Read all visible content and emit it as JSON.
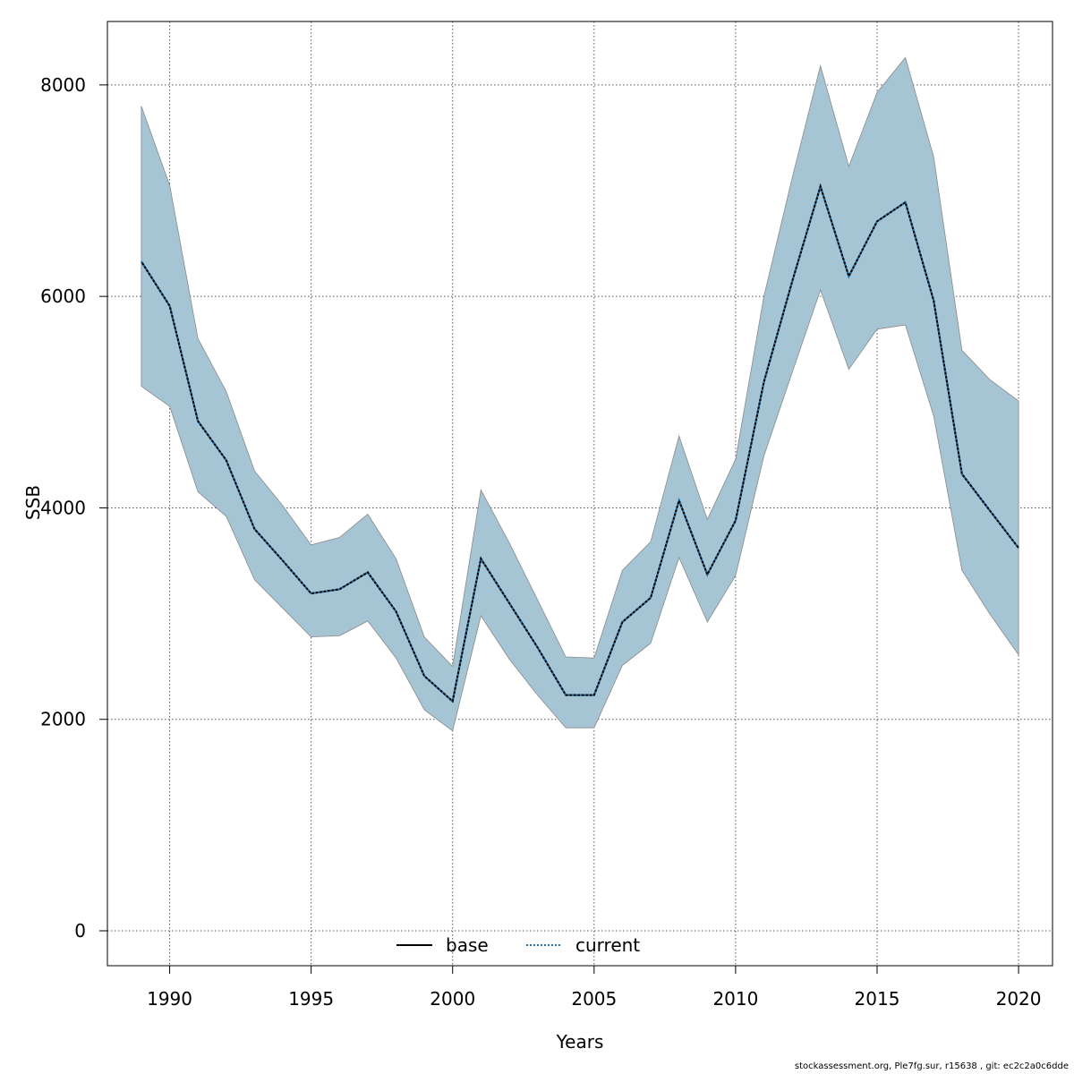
{
  "chart_data": {
    "type": "line",
    "xlabel": "Years",
    "ylabel": "SSB",
    "xlim": [
      1987.8,
      2021.2
    ],
    "ylim": [
      -330,
      8600
    ],
    "xticks": [
      1990,
      1995,
      2000,
      2005,
      2010,
      2015,
      2020
    ],
    "xtick_labels": [
      "1990",
      "1995",
      "2000",
      "2005",
      "2010",
      "2015",
      "2020"
    ],
    "yticks": [
      0,
      2000,
      4000,
      6000,
      8000
    ],
    "ytick_labels": [
      "0",
      "2000",
      "4000",
      "6000",
      "8000"
    ],
    "grid": true,
    "legend_position": "bottom-center",
    "x": [
      1989,
      1990,
      1991,
      1992,
      1993,
      1994,
      1995,
      1996,
      1997,
      1998,
      1999,
      2000,
      2001,
      2002,
      2003,
      2004,
      2005,
      2006,
      2007,
      2008,
      2009,
      2010,
      2011,
      2012,
      2013,
      2014,
      2015,
      2016,
      2017,
      2018,
      2019,
      2020
    ],
    "band": {
      "color": "#a5c4d4",
      "stroke": "#8a8a8a",
      "upper": [
        7800,
        7050,
        5600,
        5100,
        4350,
        4020,
        3650,
        3720,
        3940,
        3520,
        2780,
        2500,
        4170,
        3670,
        3130,
        2590,
        2580,
        3410,
        3680,
        4680,
        3890,
        4460,
        6000,
        7120,
        8180,
        7230,
        7930,
        8260,
        7320,
        5490,
        5210,
        5010
      ],
      "lower": [
        5150,
        4960,
        4150,
        3920,
        3320,
        3050,
        2780,
        2790,
        2930,
        2580,
        2090,
        1890,
        2980,
        2570,
        2230,
        1920,
        1920,
        2510,
        2720,
        3530,
        2920,
        3360,
        4490,
        5280,
        6060,
        5310,
        5690,
        5730,
        4870,
        3410,
        2990,
        2610
      ]
    },
    "series": [
      {
        "name": "base",
        "color": "#000000",
        "dash": "solid",
        "values": [
          6330,
          5910,
          4820,
          4450,
          3800,
          3500,
          3190,
          3230,
          3390,
          3020,
          2410,
          2170,
          3520,
          3100,
          2680,
          2230,
          2230,
          2920,
          3150,
          4070,
          3370,
          3880,
          5190,
          6140,
          7040,
          6190,
          6710,
          6890,
          5960,
          4320,
          3970,
          3620
        ]
      },
      {
        "name": "current",
        "color": "#1f6fa8",
        "dash": "dotted",
        "values": [
          6330,
          5910,
          4820,
          4450,
          3800,
          3500,
          3190,
          3230,
          3390,
          3020,
          2410,
          2170,
          3520,
          3100,
          2680,
          2230,
          2230,
          2920,
          3150,
          4070,
          3370,
          3880,
          5190,
          6140,
          7040,
          6190,
          6710,
          6890,
          5960,
          4320,
          3970,
          3620
        ]
      }
    ]
  },
  "footer": "stockassessment.org, Ple7fg.sur, r15638 , git: ec2c2a0c6dde"
}
